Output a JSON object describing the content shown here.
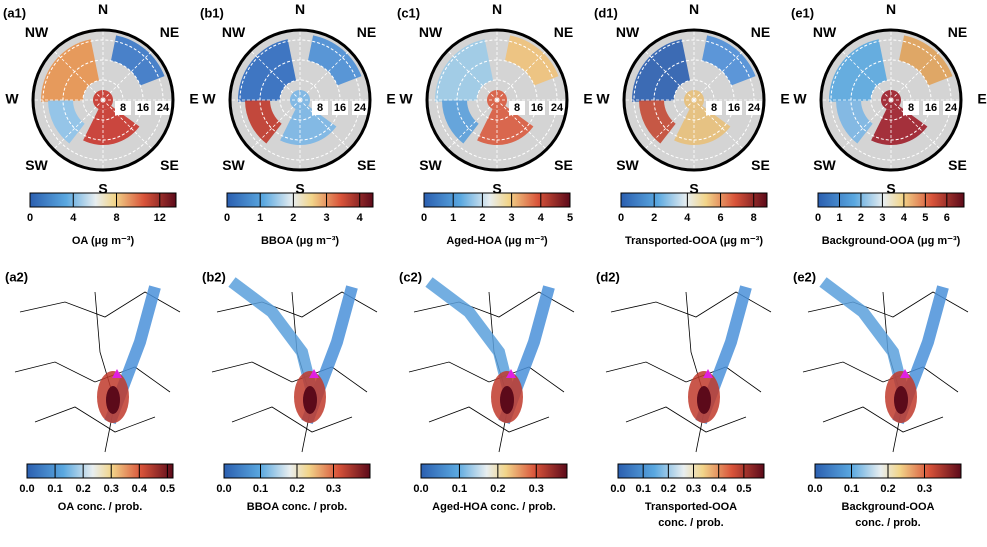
{
  "directions": [
    "N",
    "NE",
    "E",
    "SE",
    "S",
    "SW",
    "W",
    "NW"
  ],
  "polar_panels": [
    {
      "label": "(a1)",
      "radial_ticks": [
        8,
        16,
        24
      ],
      "rlim": [
        0,
        28
      ],
      "colorbar": {
        "label": "OA (μg m⁻³)",
        "lim": [
          0,
          13.5
        ],
        "ticks": [
          0,
          4,
          8,
          12
        ]
      }
    },
    {
      "label": "(b1)",
      "radial_ticks": [
        8,
        16,
        24
      ],
      "rlim": [
        0,
        28
      ],
      "colorbar": {
        "label": "BBOA  (μg m⁻³)",
        "lim": [
          0,
          4.4
        ],
        "ticks": [
          0,
          1,
          2,
          3,
          4
        ]
      }
    },
    {
      "label": "(c1)",
      "radial_ticks": [
        8,
        16,
        24
      ],
      "rlim": [
        0,
        28
      ],
      "colorbar": {
        "label": "Aged-HOA (μg m⁻³)",
        "lim": [
          0,
          5
        ],
        "ticks": [
          0,
          1,
          2,
          3,
          4,
          5
        ]
      }
    },
    {
      "label": "(d1)",
      "radial_ticks": [
        8,
        16,
        24
      ],
      "rlim": [
        0,
        28
      ],
      "colorbar": {
        "label": "Transported-OOA  (μg m⁻³)",
        "lim": [
          0,
          8.8
        ],
        "ticks": [
          0,
          2,
          4,
          6,
          8
        ]
      }
    },
    {
      "label": "(e1)",
      "radial_ticks": [
        8,
        16,
        24
      ],
      "rlim": [
        0,
        28
      ],
      "colorbar": {
        "label": "Background-OOA  (μg m⁻³)",
        "lim": [
          0,
          6.8
        ],
        "ticks": [
          0,
          1,
          2,
          3,
          4,
          5,
          6
        ]
      }
    }
  ],
  "map_panels": [
    {
      "label": "(a2)",
      "colorbar": {
        "label": [
          "OA  conc. / prob."
        ],
        "lim": [
          0,
          0.52
        ],
        "ticks": [
          {
            "value": 0,
            "label": "0.0"
          },
          0.1,
          0.2,
          0.3,
          0.4,
          0.5
        ]
      }
    },
    {
      "label": "(b2)",
      "colorbar": {
        "label": [
          "BBOA  conc. / prob."
        ],
        "lim": [
          0,
          0.4
        ],
        "ticks": [
          {
            "value": 0,
            "label": "0.0"
          },
          0.1,
          0.2,
          0.3
        ]
      }
    },
    {
      "label": "(c2)",
      "colorbar": {
        "label": [
          "Aged-HOA  conc. / prob."
        ],
        "lim": [
          0,
          0.38
        ],
        "ticks": [
          {
            "value": 0,
            "label": "0.0"
          },
          0.1,
          0.2,
          0.3
        ]
      }
    },
    {
      "label": "(d2)",
      "colorbar": {
        "label": [
          "Transported-OOA",
          "conc. / prob."
        ],
        "lim": [
          0,
          0.58
        ],
        "ticks": [
          {
            "value": 0,
            "label": "0.0"
          },
          0.1,
          0.2,
          0.3,
          0.4,
          0.5
        ]
      }
    },
    {
      "label": "(e2)",
      "colorbar": {
        "label": [
          "Background-OOA",
          "conc. / prob."
        ],
        "lim": [
          0,
          0.4
        ],
        "ticks": [
          {
            "value": 0,
            "label": "0.0"
          },
          0.1,
          0.2,
          0.3
        ]
      }
    }
  ]
}
